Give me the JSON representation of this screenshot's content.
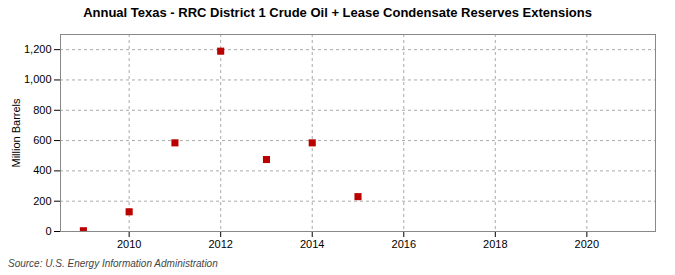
{
  "chart_data": {
    "type": "scatter",
    "title": "Annual Texas - RRC District 1 Crude Oil + Lease Condensate Reserves Extensions",
    "y_label": "Million Barrels",
    "annotations": [
      "Source: U.S. Energy Information Administration"
    ],
    "x": [
      2009,
      2010,
      2011,
      2012,
      2013,
      2014,
      2015
    ],
    "values": [
      5,
      130,
      585,
      1190,
      475,
      585,
      230
    ],
    "color": "#bb0000",
    "marker": "square",
    "xlim": [
      2008.5,
      2021.5
    ],
    "xticks": [
      2010,
      2012,
      2014,
      2016,
      2018,
      2020
    ],
    "ylim": [
      0,
      1300
    ],
    "yticks": [
      0,
      200,
      400,
      600,
      800,
      {
        "value": 1000,
        "label": "1,000"
      },
      {
        "value": 1200,
        "label": "1,200"
      }
    ],
    "grid": true
  }
}
